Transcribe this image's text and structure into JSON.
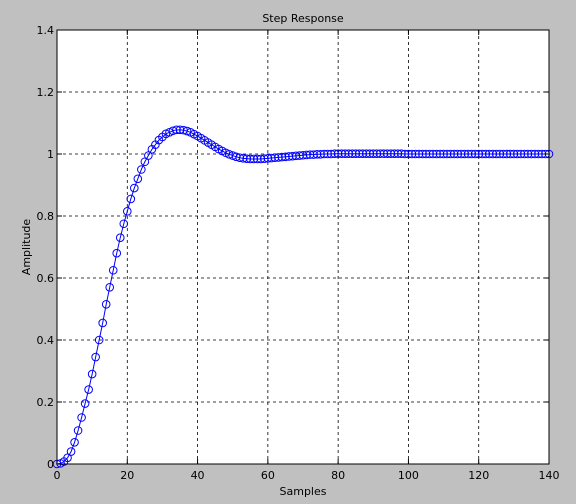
{
  "chart_data": {
    "type": "scatter",
    "title": "Step Response",
    "xlabel": "Samples",
    "ylabel": "Amplitude",
    "xlim": [
      0,
      140
    ],
    "ylim": [
      0,
      1.4
    ],
    "xticks": [
      0,
      20,
      40,
      60,
      80,
      100,
      120,
      140
    ],
    "yticks": [
      0,
      0.2,
      0.4,
      0.6,
      0.8,
      1,
      1.2,
      1.4
    ],
    "xtick_labels": [
      "0",
      "20",
      "40",
      "60",
      "80",
      "100",
      "120",
      "140"
    ],
    "ytick_labels": [
      "0",
      "0.2",
      "0.4",
      "0.6",
      "0.8",
      "1",
      "1.2",
      "1.4"
    ],
    "grid": true,
    "series": [
      {
        "marker": "circle",
        "line": "solid",
        "color": "#0000ff",
        "x": [
          0,
          1,
          2,
          3,
          4,
          5,
          6,
          7,
          8,
          9,
          10,
          11,
          12,
          13,
          14,
          15,
          16,
          17,
          18,
          19,
          20,
          21,
          22,
          23,
          24,
          25,
          26,
          27,
          28,
          29,
          30,
          31,
          32,
          33,
          34,
          35,
          36,
          37,
          38,
          39,
          40,
          41,
          42,
          43,
          44,
          45,
          46,
          47,
          48,
          49,
          50,
          51,
          52,
          53,
          54,
          55,
          56,
          57,
          58,
          59,
          60,
          61,
          62,
          63,
          64,
          65,
          66,
          67,
          68,
          69,
          70,
          71,
          72,
          73,
          74,
          75,
          76,
          77,
          78,
          79,
          80,
          81,
          82,
          83,
          84,
          85,
          86,
          87,
          88,
          89,
          90,
          91,
          92,
          93,
          94,
          95,
          96,
          97,
          98,
          99,
          100,
          101,
          102,
          103,
          104,
          105,
          106,
          107,
          108,
          109,
          110,
          111,
          112,
          113,
          114,
          115,
          116,
          117,
          118,
          119,
          120,
          121,
          122,
          123,
          124,
          125,
          126,
          127,
          128,
          129,
          130,
          131,
          132,
          133,
          134,
          135,
          136,
          137,
          138,
          139,
          140
        ],
        "y": [
          0,
          0.002,
          0.008,
          0.02,
          0.04,
          0.07,
          0.108,
          0.15,
          0.195,
          0.24,
          0.29,
          0.345,
          0.4,
          0.455,
          0.515,
          0.57,
          0.625,
          0.68,
          0.73,
          0.775,
          0.815,
          0.855,
          0.89,
          0.92,
          0.95,
          0.975,
          0.995,
          1.015,
          1.03,
          1.045,
          1.055,
          1.065,
          1.07,
          1.075,
          1.078,
          1.078,
          1.077,
          1.074,
          1.07,
          1.064,
          1.058,
          1.051,
          1.044,
          1.037,
          1.03,
          1.023,
          1.016,
          1.01,
          1.004,
          0.999,
          0.995,
          0.991,
          0.988,
          0.986,
          0.985,
          0.984,
          0.984,
          0.984,
          0.984,
          0.985,
          0.986,
          0.987,
          0.988,
          0.989,
          0.99,
          0.991,
          0.992,
          0.993,
          0.994,
          0.995,
          0.996,
          0.997,
          0.998,
          0.998,
          0.999,
          0.999,
          1.0,
          1.0,
          1.0,
          1.001,
          1.001,
          1.001,
          1.001,
          1.001,
          1.001,
          1.001,
          1.001,
          1.001,
          1.001,
          1.001,
          1.001,
          1.001,
          1.001,
          1.001,
          1.001,
          1.001,
          1.001,
          1.001,
          1.001,
          1.0,
          1.0,
          1.0,
          1.0,
          1.0,
          1.0,
          1.0,
          1.0,
          1.0,
          1.0,
          1.0,
          1.0,
          1.0,
          1.0,
          1.0,
          1.0,
          1.0,
          1.0,
          1.0,
          1.0,
          1.0,
          1.0,
          1.0,
          1.0,
          1.0,
          1.0,
          1.0,
          1.0,
          1.0,
          1.0,
          1.0,
          1.0,
          1.0,
          1.0,
          1.0,
          1.0,
          1.0,
          1.0,
          1.0,
          1.0,
          1.0,
          1.0
        ]
      }
    ]
  }
}
